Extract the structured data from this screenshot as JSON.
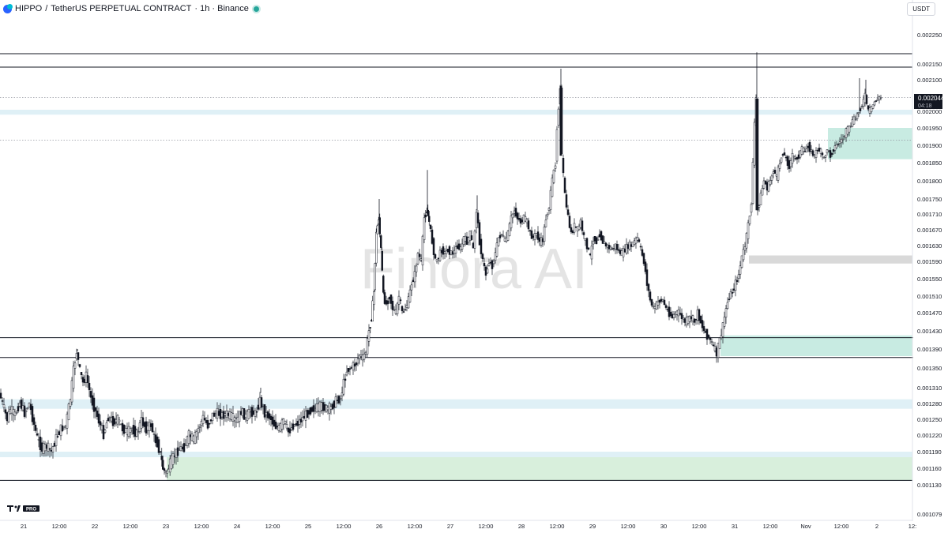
{
  "header": {
    "symbol": "HIPPO",
    "separator": "/",
    "pair": "TetherUS PERPETUAL CONTRACT",
    "interval_exchange": "· 1h · Binance"
  },
  "currency_button": "USDT",
  "watermark": "Finora AI",
  "tv_logo_text": "PRO",
  "price_badge": {
    "price": "0.002044",
    "countdown": "04:18"
  },
  "colors": {
    "candle": "#131722",
    "zone_light_blue": "#dff0f6",
    "zone_teal": "#c8ebe2",
    "zone_green": "#d8efdc",
    "zone_gray": "#d9d9d9",
    "badge_bg": "#131722",
    "accent_blue": "#2962ff"
  },
  "chart_data": {
    "type": "candlestick",
    "x_axis_labels": [
      "21",
      "12:00",
      "22",
      "12:00",
      "23",
      "12:00",
      "24",
      "12:00",
      "25",
      "12:00",
      "26",
      "12:00",
      "27",
      "12:00",
      "28",
      "12:00",
      "29",
      "12:00",
      "30",
      "12:00",
      "31",
      "12:00",
      "Nov",
      "12:00",
      "2",
      "12:"
    ],
    "y_axis_labels": [
      "0.002250",
      "0.002150",
      "0.002100",
      "0.002000",
      "0.001950",
      "0.001900",
      "0.001850",
      "0.001800",
      "0.001750",
      "0.001710",
      "0.001670",
      "0.001630",
      "0.001590",
      "0.001550",
      "0.001510",
      "0.001470",
      "0.001430",
      "0.001390",
      "0.001350",
      "0.001310",
      "0.001280",
      "0.001250",
      "0.001220",
      "0.001190",
      "0.001160",
      "0.001130",
      "0.001079"
    ],
    "path_points": [
      [
        0,
        0.0013
      ],
      [
        6,
        0.00127
      ],
      [
        10,
        0.00125
      ],
      [
        14,
        0.00127
      ],
      [
        20,
        0.001258
      ],
      [
        26,
        0.001282
      ],
      [
        32,
        0.001262
      ],
      [
        38,
        0.00128
      ],
      [
        44,
        0.00124
      ],
      [
        48,
        0.001215
      ],
      [
        54,
        0.001195
      ],
      [
        60,
        0.0012
      ],
      [
        66,
        0.00119
      ],
      [
        72,
        0.001215
      ],
      [
        78,
        0.001232
      ],
      [
        84,
        0.001238
      ],
      [
        90,
        0.00129
      ],
      [
        94,
        0.001345
      ],
      [
        98,
        0.001385
      ],
      [
        102,
        0.001345
      ],
      [
        106,
        0.00132
      ],
      [
        110,
        0.001335
      ],
      [
        116,
        0.00129
      ],
      [
        122,
        0.001265
      ],
      [
        128,
        0.001238
      ],
      [
        132,
        0.001222
      ],
      [
        138,
        0.001255
      ],
      [
        144,
        0.001245
      ],
      [
        150,
        0.00125
      ],
      [
        156,
        0.001232
      ],
      [
        162,
        0.001226
      ],
      [
        168,
        0.001232
      ],
      [
        174,
        0.001222
      ],
      [
        180,
        0.001248
      ],
      [
        186,
        0.001232
      ],
      [
        192,
        0.00124
      ],
      [
        196,
        0.001216
      ],
      [
        200,
        0.001205
      ],
      [
        204,
        0.001185
      ],
      [
        207,
        0.00116
      ],
      [
        211,
        0.00115
      ],
      [
        216,
        0.001168
      ],
      [
        222,
        0.001185
      ],
      [
        228,
        0.001195
      ],
      [
        234,
        0.001198
      ],
      [
        240,
        0.00122
      ],
      [
        246,
        0.001212
      ],
      [
        252,
        0.001232
      ],
      [
        258,
        0.001253
      ],
      [
        264,
        0.001238
      ],
      [
        270,
        0.001258
      ],
      [
        276,
        0.001262
      ],
      [
        282,
        0.001258
      ],
      [
        288,
        0.00126
      ],
      [
        294,
        0.001255
      ],
      [
        300,
        0.001246
      ],
      [
        306,
        0.001265
      ],
      [
        312,
        0.001255
      ],
      [
        318,
        0.001265
      ],
      [
        324,
        0.00126
      ],
      [
        330,
        0.001286
      ],
      [
        336,
        0.001262
      ],
      [
        342,
        0.001255
      ],
      [
        348,
        0.00124
      ],
      [
        354,
        0.001232
      ],
      [
        360,
        0.001248
      ],
      [
        366,
        0.001226
      ],
      [
        372,
        0.001238
      ],
      [
        378,
        0.001243
      ],
      [
        384,
        0.001252
      ],
      [
        390,
        0.001262
      ],
      [
        396,
        0.00127
      ],
      [
        402,
        0.001272
      ],
      [
        408,
        0.001275
      ],
      [
        414,
        0.00127
      ],
      [
        420,
        0.001272
      ],
      [
        426,
        0.001285
      ],
      [
        432,
        0.00129
      ],
      [
        436,
        0.00132
      ],
      [
        440,
        0.001345
      ],
      [
        446,
        0.001352
      ],
      [
        452,
        0.00136
      ],
      [
        456,
        0.001378
      ],
      [
        460,
        0.00137
      ],
      [
        464,
        0.001385
      ],
      [
        468,
        0.00143
      ],
      [
        471,
        0.00146
      ],
      [
        474,
        0.00152
      ],
      [
        477,
        0.00166
      ],
      [
        480,
        0.0017
      ],
      [
        483,
        0.00162
      ],
      [
        486,
        0.00151
      ],
      [
        490,
        0.00149
      ],
      [
        494,
        0.00151
      ],
      [
        498,
        0.00148
      ],
      [
        502,
        0.00147
      ],
      [
        506,
        0.00151
      ],
      [
        510,
        0.00147
      ],
      [
        514,
        0.00148
      ],
      [
        518,
        0.0015
      ],
      [
        522,
        0.00154
      ],
      [
        526,
        0.00156
      ],
      [
        530,
        0.00161
      ],
      [
        534,
        0.00159
      ],
      [
        538,
        0.0017
      ],
      [
        541,
        0.00172
      ],
      [
        544,
        0.00169
      ],
      [
        548,
        0.00164
      ],
      [
        552,
        0.00159
      ],
      [
        556,
        0.0016
      ],
      [
        560,
        0.00162
      ],
      [
        564,
        0.00161
      ],
      [
        568,
        0.00162
      ],
      [
        572,
        0.00161
      ],
      [
        576,
        0.001615
      ],
      [
        580,
        0.00163
      ],
      [
        584,
        0.00162
      ],
      [
        588,
        0.00165
      ],
      [
        592,
        0.00164
      ],
      [
        596,
        0.00166
      ],
      [
        600,
        0.00162
      ],
      [
        604,
        0.00172
      ],
      [
        608,
        0.00164
      ],
      [
        612,
        0.00159
      ],
      [
        616,
        0.00156
      ],
      [
        620,
        0.00159
      ],
      [
        624,
        0.00158
      ],
      [
        628,
        0.00161
      ],
      [
        632,
        0.00165
      ],
      [
        636,
        0.00166
      ],
      [
        640,
        0.00164
      ],
      [
        644,
        0.00166
      ],
      [
        648,
        0.0017
      ],
      [
        652,
        0.00172
      ],
      [
        656,
        0.0017
      ],
      [
        660,
        0.00169
      ],
      [
        664,
        0.0017
      ],
      [
        668,
        0.00169
      ],
      [
        672,
        0.00166
      ],
      [
        676,
        0.00165
      ],
      [
        680,
        0.00166
      ],
      [
        684,
        0.00164
      ],
      [
        688,
        0.001645
      ],
      [
        692,
        0.0017
      ],
      [
        696,
        0.00173
      ],
      [
        700,
        0.0018
      ],
      [
        704,
        0.00185
      ],
      [
        706,
        0.00195
      ],
      [
        710,
        0.00208
      ],
      [
        712,
        0.00187
      ],
      [
        716,
        0.00176
      ],
      [
        720,
        0.0017
      ],
      [
        724,
        0.00166
      ],
      [
        728,
        0.00168
      ],
      [
        732,
        0.00167
      ],
      [
        736,
        0.00169
      ],
      [
        740,
        0.00165
      ],
      [
        744,
        0.00163
      ],
      [
        748,
        0.0016
      ],
      [
        752,
        0.00165
      ],
      [
        756,
        0.00164
      ],
      [
        760,
        0.00166
      ],
      [
        764,
        0.00164
      ],
      [
        768,
        0.00163
      ],
      [
        772,
        0.001625
      ],
      [
        776,
        0.00162
      ],
      [
        780,
        0.00163
      ],
      [
        784,
        0.001615
      ],
      [
        788,
        0.00161
      ],
      [
        792,
        0.00162
      ],
      [
        796,
        0.00163
      ],
      [
        800,
        0.00163
      ],
      [
        804,
        0.00164
      ],
      [
        808,
        0.00165
      ],
      [
        812,
        0.00162
      ],
      [
        816,
        0.00159
      ],
      [
        820,
        0.00154
      ],
      [
        824,
        0.0015
      ],
      [
        828,
        0.00148
      ],
      [
        832,
        0.00149
      ],
      [
        836,
        0.0015
      ],
      [
        840,
        0.0015
      ],
      [
        844,
        0.00148
      ],
      [
        848,
        0.00147
      ],
      [
        852,
        0.00146
      ],
      [
        856,
        0.00147
      ],
      [
        860,
        0.00147
      ],
      [
        864,
        0.00146
      ],
      [
        868,
        0.00145
      ],
      [
        872,
        0.001455
      ],
      [
        876,
        0.00146
      ],
      [
        880,
        0.00145
      ],
      [
        884,
        0.00147
      ],
      [
        888,
        0.00145
      ],
      [
        892,
        0.00143
      ],
      [
        896,
        0.00142
      ],
      [
        900,
        0.00141
      ],
      [
        904,
        0.001395
      ],
      [
        908,
        0.00138
      ],
      [
        912,
        0.00141
      ],
      [
        916,
        0.00144
      ],
      [
        920,
        0.00148
      ],
      [
        924,
        0.00151
      ],
      [
        928,
        0.00152
      ],
      [
        932,
        0.00154
      ],
      [
        936,
        0.00156
      ],
      [
        940,
        0.0016
      ],
      [
        944,
        0.00163
      ],
      [
        948,
        0.00168
      ],
      [
        952,
        0.00174
      ],
      [
        956,
        0.00196
      ],
      [
        958,
        0.00204
      ],
      [
        960,
        0.00172
      ],
      [
        964,
        0.00176
      ],
      [
        968,
        0.0018
      ],
      [
        972,
        0.00178
      ],
      [
        976,
        0.0018
      ],
      [
        980,
        0.00183
      ],
      [
        984,
        0.00181
      ],
      [
        988,
        0.00185
      ],
      [
        992,
        0.00188
      ],
      [
        996,
        0.00186
      ],
      [
        1000,
        0.00184
      ],
      [
        1004,
        0.00187
      ],
      [
        1008,
        0.00186
      ],
      [
        1012,
        0.00187
      ],
      [
        1016,
        0.00189
      ],
      [
        1020,
        0.00188
      ],
      [
        1024,
        0.0019
      ],
      [
        1028,
        0.00188
      ],
      [
        1032,
        0.00187
      ],
      [
        1036,
        0.00189
      ],
      [
        1040,
        0.00188
      ],
      [
        1044,
        0.00186
      ],
      [
        1048,
        0.00189
      ],
      [
        1052,
        0.00187
      ],
      [
        1056,
        0.00189
      ],
      [
        1060,
        0.0019
      ],
      [
        1064,
        0.00191
      ],
      [
        1068,
        0.00192
      ],
      [
        1072,
        0.00194
      ],
      [
        1076,
        0.00195
      ],
      [
        1080,
        0.00197
      ],
      [
        1084,
        0.00198
      ],
      [
        1088,
        0.002
      ],
      [
        1092,
        0.00202
      ],
      [
        1096,
        0.00205
      ],
      [
        1100,
        0.002
      ],
      [
        1104,
        0.00201
      ],
      [
        1108,
        0.00203
      ],
      [
        1112,
        0.00204
      ],
      [
        1116,
        0.002044
      ]
    ],
    "horizontal_lines": [
      {
        "price": 0.002185,
        "style": "solid"
      },
      {
        "price": 0.00214,
        "style": "solid"
      },
      {
        "price": 0.002044,
        "style": "dotted"
      },
      {
        "price": 0.001915,
        "style": "dotted"
      },
      {
        "price": 0.001415,
        "style": "solid",
        "x_end": 1156
      },
      {
        "price": 0.001372,
        "style": "solid",
        "x_end": 1156
      },
      {
        "price": 0.001138,
        "style": "solid"
      }
    ],
    "zones": [
      {
        "from": 0.00199,
        "to": 0.002005,
        "color": "zone_light_blue"
      },
      {
        "from": 0.00186,
        "to": 0.00195,
        "color": "zone_teal",
        "x_start": 1048
      },
      {
        "from": 0.001585,
        "to": 0.001605,
        "color": "zone_gray",
        "x_start": 948
      },
      {
        "from": 0.001375,
        "to": 0.00142,
        "color": "zone_teal",
        "x_start": 912
      },
      {
        "from": 0.00127,
        "to": 0.001288,
        "color": "zone_light_blue"
      },
      {
        "from": 0.001137,
        "to": 0.001183,
        "color": "zone_green",
        "x_start": 211
      },
      {
        "from": 0.00118,
        "to": 0.00119,
        "color": "zone_light_blue"
      }
    ]
  }
}
